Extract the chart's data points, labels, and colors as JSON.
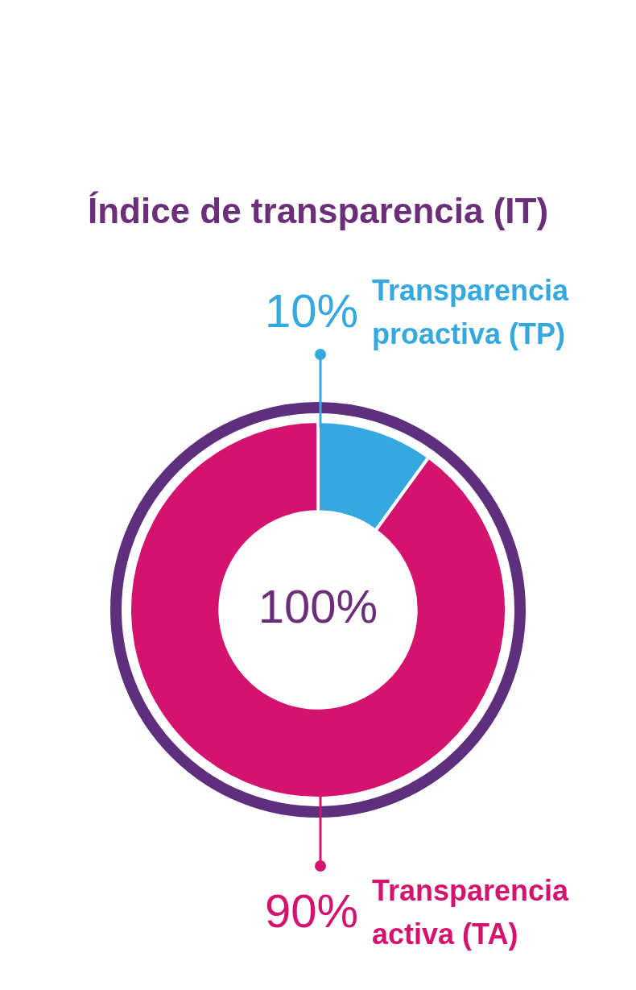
{
  "chart_data": {
    "type": "donut",
    "title": "Índice de transparencia (IT)",
    "categories": [
      "Transparencia proactiva (TP)",
      "Transparencia activa (TA)"
    ],
    "values": [
      10,
      90
    ],
    "colors": [
      "#35a8e0",
      "#d4136e"
    ],
    "value_labels": [
      "10%",
      "90%"
    ],
    "annotations": [
      "100%"
    ]
  }
}
